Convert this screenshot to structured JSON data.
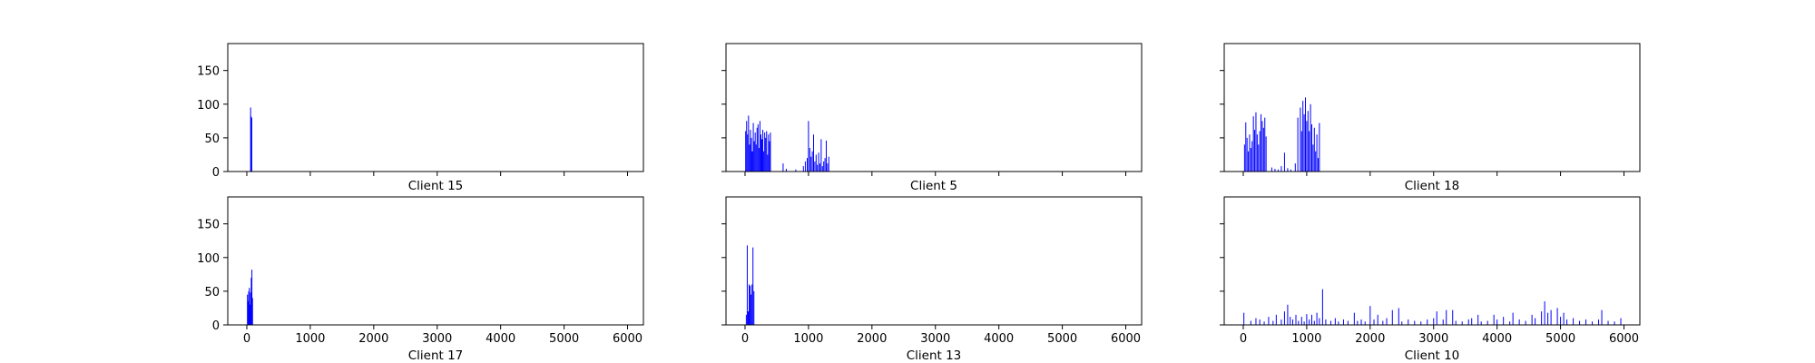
{
  "chart_data": [
    {
      "type": "bar",
      "xlabel": "Client 15",
      "xlim": [
        -300,
        6250
      ],
      "ylim": [
        0,
        190
      ],
      "xticks": [
        0,
        1000,
        2000,
        3000,
        4000,
        5000,
        6000
      ],
      "yticks": [
        0,
        50,
        100,
        150
      ],
      "show_xtick_labels": false,
      "show_ytick_labels": true,
      "bar_color": "#0000ff",
      "bars": [
        {
          "x": 60,
          "y": 95
        },
        {
          "x": 66,
          "y": 82
        },
        {
          "x": 72,
          "y": 78
        },
        {
          "x": 78,
          "y": 80
        }
      ]
    },
    {
      "type": "bar",
      "xlabel": "Client 5",
      "xlim": [
        -300,
        6250
      ],
      "ylim": [
        0,
        190
      ],
      "xticks": [
        0,
        1000,
        2000,
        3000,
        4000,
        5000,
        6000
      ],
      "yticks": [
        0,
        50,
        100,
        150
      ],
      "show_xtick_labels": false,
      "show_ytick_labels": false,
      "bar_color": "#0000ff",
      "bars": [
        {
          "x": 10,
          "y": 60
        },
        {
          "x": 25,
          "y": 75
        },
        {
          "x": 40,
          "y": 55
        },
        {
          "x": 55,
          "y": 83
        },
        {
          "x": 70,
          "y": 40
        },
        {
          "x": 85,
          "y": 62
        },
        {
          "x": 100,
          "y": 50
        },
        {
          "x": 115,
          "y": 30
        },
        {
          "x": 130,
          "y": 72
        },
        {
          "x": 145,
          "y": 45
        },
        {
          "x": 160,
          "y": 58
        },
        {
          "x": 175,
          "y": 40
        },
        {
          "x": 190,
          "y": 65
        },
        {
          "x": 205,
          "y": 70
        },
        {
          "x": 220,
          "y": 35
        },
        {
          "x": 235,
          "y": 75
        },
        {
          "x": 250,
          "y": 55
        },
        {
          "x": 265,
          "y": 48
        },
        {
          "x": 280,
          "y": 62
        },
        {
          "x": 295,
          "y": 30
        },
        {
          "x": 310,
          "y": 58
        },
        {
          "x": 325,
          "y": 50
        },
        {
          "x": 340,
          "y": 60
        },
        {
          "x": 355,
          "y": 25
        },
        {
          "x": 370,
          "y": 55
        },
        {
          "x": 385,
          "y": 45
        },
        {
          "x": 400,
          "y": 58
        },
        {
          "x": 600,
          "y": 12
        },
        {
          "x": 650,
          "y": 4
        },
        {
          "x": 800,
          "y": 3
        },
        {
          "x": 920,
          "y": 8
        },
        {
          "x": 950,
          "y": 15
        },
        {
          "x": 980,
          "y": 20
        },
        {
          "x": 1000,
          "y": 75
        },
        {
          "x": 1020,
          "y": 35
        },
        {
          "x": 1040,
          "y": 22
        },
        {
          "x": 1060,
          "y": 30
        },
        {
          "x": 1080,
          "y": 55
        },
        {
          "x": 1100,
          "y": 15
        },
        {
          "x": 1120,
          "y": 25
        },
        {
          "x": 1140,
          "y": 10
        },
        {
          "x": 1160,
          "y": 28
        },
        {
          "x": 1180,
          "y": 12
        },
        {
          "x": 1200,
          "y": 48
        },
        {
          "x": 1220,
          "y": 8
        },
        {
          "x": 1240,
          "y": 15
        },
        {
          "x": 1260,
          "y": 20
        },
        {
          "x": 1280,
          "y": 46
        },
        {
          "x": 1300,
          "y": 12
        },
        {
          "x": 1320,
          "y": 22
        }
      ]
    },
    {
      "type": "bar",
      "xlabel": "Client 18",
      "xlim": [
        -300,
        6250
      ],
      "ylim": [
        0,
        190
      ],
      "xticks": [
        0,
        1000,
        2000,
        3000,
        4000,
        5000,
        6000
      ],
      "yticks": [
        0,
        50,
        100,
        150
      ],
      "show_xtick_labels": false,
      "show_ytick_labels": false,
      "bar_color": "#0000ff",
      "bars": [
        {
          "x": 20,
          "y": 40
        },
        {
          "x": 40,
          "y": 73
        },
        {
          "x": 60,
          "y": 50
        },
        {
          "x": 80,
          "y": 30
        },
        {
          "x": 100,
          "y": 55
        },
        {
          "x": 120,
          "y": 35
        },
        {
          "x": 140,
          "y": 45
        },
        {
          "x": 160,
          "y": 82
        },
        {
          "x": 180,
          "y": 62
        },
        {
          "x": 200,
          "y": 88
        },
        {
          "x": 220,
          "y": 55
        },
        {
          "x": 240,
          "y": 40
        },
        {
          "x": 260,
          "y": 60
        },
        {
          "x": 280,
          "y": 85
        },
        {
          "x": 300,
          "y": 75
        },
        {
          "x": 320,
          "y": 65
        },
        {
          "x": 340,
          "y": 80
        },
        {
          "x": 360,
          "y": 52
        },
        {
          "x": 450,
          "y": 6
        },
        {
          "x": 500,
          "y": 4
        },
        {
          "x": 550,
          "y": 3
        },
        {
          "x": 600,
          "y": 8
        },
        {
          "x": 650,
          "y": 28
        },
        {
          "x": 700,
          "y": 5
        },
        {
          "x": 750,
          "y": 3
        },
        {
          "x": 820,
          "y": 12
        },
        {
          "x": 860,
          "y": 80
        },
        {
          "x": 900,
          "y": 95
        },
        {
          "x": 920,
          "y": 60
        },
        {
          "x": 940,
          "y": 105
        },
        {
          "x": 960,
          "y": 85
        },
        {
          "x": 980,
          "y": 110
        },
        {
          "x": 1000,
          "y": 75
        },
        {
          "x": 1020,
          "y": 90
        },
        {
          "x": 1040,
          "y": 60
        },
        {
          "x": 1060,
          "y": 100
        },
        {
          "x": 1080,
          "y": 70
        },
        {
          "x": 1100,
          "y": 40
        },
        {
          "x": 1120,
          "y": 65
        },
        {
          "x": 1140,
          "y": 30
        },
        {
          "x": 1160,
          "y": 55
        },
        {
          "x": 1180,
          "y": 20
        },
        {
          "x": 1200,
          "y": 72
        }
      ]
    },
    {
      "type": "bar",
      "xlabel": "Client 17",
      "xlim": [
        -300,
        6250
      ],
      "ylim": [
        0,
        190
      ],
      "xticks": [
        0,
        1000,
        2000,
        3000,
        4000,
        5000,
        6000
      ],
      "yticks": [
        0,
        50,
        100,
        150
      ],
      "show_xtick_labels": true,
      "show_ytick_labels": true,
      "bar_color": "#0000ff",
      "bars": [
        {
          "x": 10,
          "y": 45
        },
        {
          "x": 20,
          "y": 35
        },
        {
          "x": 30,
          "y": 50
        },
        {
          "x": 40,
          "y": 55
        },
        {
          "x": 50,
          "y": 30
        },
        {
          "x": 60,
          "y": 48
        },
        {
          "x": 70,
          "y": 70
        },
        {
          "x": 80,
          "y": 82
        },
        {
          "x": 90,
          "y": 40
        }
      ]
    },
    {
      "type": "bar",
      "xlabel": "Client 13",
      "xlim": [
        -300,
        6250
      ],
      "ylim": [
        0,
        190
      ],
      "xticks": [
        0,
        1000,
        2000,
        3000,
        4000,
        5000,
        6000
      ],
      "yticks": [
        0,
        50,
        100,
        150
      ],
      "show_xtick_labels": true,
      "show_ytick_labels": false,
      "bar_color": "#0000ff",
      "bars": [
        {
          "x": 20,
          "y": 15
        },
        {
          "x": 35,
          "y": 118
        },
        {
          "x": 50,
          "y": 20
        },
        {
          "x": 65,
          "y": 60
        },
        {
          "x": 80,
          "y": 58
        },
        {
          "x": 95,
          "y": 45
        },
        {
          "x": 110,
          "y": 60
        },
        {
          "x": 125,
          "y": 115
        },
        {
          "x": 140,
          "y": 50
        }
      ]
    },
    {
      "type": "bar",
      "xlabel": "Client 10",
      "xlim": [
        -300,
        6250
      ],
      "ylim": [
        0,
        190
      ],
      "xticks": [
        0,
        1000,
        2000,
        3000,
        4000,
        5000,
        6000
      ],
      "yticks": [
        0,
        50,
        100,
        150
      ],
      "show_xtick_labels": true,
      "show_ytick_labels": false,
      "bar_color": "#0000ff",
      "bars": [
        {
          "x": 10,
          "y": 18
        },
        {
          "x": 120,
          "y": 6
        },
        {
          "x": 200,
          "y": 10
        },
        {
          "x": 260,
          "y": 8
        },
        {
          "x": 330,
          "y": 5
        },
        {
          "x": 400,
          "y": 12
        },
        {
          "x": 470,
          "y": 6
        },
        {
          "x": 520,
          "y": 15
        },
        {
          "x": 600,
          "y": 8
        },
        {
          "x": 650,
          "y": 20
        },
        {
          "x": 700,
          "y": 30
        },
        {
          "x": 740,
          "y": 12
        },
        {
          "x": 780,
          "y": 8
        },
        {
          "x": 830,
          "y": 15
        },
        {
          "x": 870,
          "y": 6
        },
        {
          "x": 920,
          "y": 12
        },
        {
          "x": 960,
          "y": 5
        },
        {
          "x": 1000,
          "y": 16
        },
        {
          "x": 1040,
          "y": 8
        },
        {
          "x": 1080,
          "y": 15
        },
        {
          "x": 1120,
          "y": 6
        },
        {
          "x": 1160,
          "y": 18
        },
        {
          "x": 1200,
          "y": 10
        },
        {
          "x": 1250,
          "y": 53
        },
        {
          "x": 1300,
          "y": 8
        },
        {
          "x": 1380,
          "y": 6
        },
        {
          "x": 1450,
          "y": 10
        },
        {
          "x": 1500,
          "y": 5
        },
        {
          "x": 1580,
          "y": 8
        },
        {
          "x": 1650,
          "y": 6
        },
        {
          "x": 1750,
          "y": 18
        },
        {
          "x": 1800,
          "y": 6
        },
        {
          "x": 1860,
          "y": 8
        },
        {
          "x": 1920,
          "y": 5
        },
        {
          "x": 2000,
          "y": 28
        },
        {
          "x": 2060,
          "y": 8
        },
        {
          "x": 2120,
          "y": 15
        },
        {
          "x": 2200,
          "y": 6
        },
        {
          "x": 2260,
          "y": 10
        },
        {
          "x": 2350,
          "y": 22
        },
        {
          "x": 2450,
          "y": 25
        },
        {
          "x": 2500,
          "y": 5
        },
        {
          "x": 2600,
          "y": 8
        },
        {
          "x": 2700,
          "y": 6
        },
        {
          "x": 2800,
          "y": 5
        },
        {
          "x": 2900,
          "y": 8
        },
        {
          "x": 3000,
          "y": 10
        },
        {
          "x": 3050,
          "y": 20
        },
        {
          "x": 3150,
          "y": 8
        },
        {
          "x": 3200,
          "y": 22
        },
        {
          "x": 3300,
          "y": 22
        },
        {
          "x": 3350,
          "y": 6
        },
        {
          "x": 3450,
          "y": 5
        },
        {
          "x": 3550,
          "y": 8
        },
        {
          "x": 3600,
          "y": 10
        },
        {
          "x": 3700,
          "y": 15
        },
        {
          "x": 3750,
          "y": 5
        },
        {
          "x": 3850,
          "y": 6
        },
        {
          "x": 3950,
          "y": 15
        },
        {
          "x": 4000,
          "y": 8
        },
        {
          "x": 4100,
          "y": 12
        },
        {
          "x": 4200,
          "y": 5
        },
        {
          "x": 4250,
          "y": 18
        },
        {
          "x": 4350,
          "y": 8
        },
        {
          "x": 4450,
          "y": 6
        },
        {
          "x": 4550,
          "y": 15
        },
        {
          "x": 4600,
          "y": 10
        },
        {
          "x": 4700,
          "y": 20
        },
        {
          "x": 4750,
          "y": 35
        },
        {
          "x": 4800,
          "y": 18
        },
        {
          "x": 4850,
          "y": 22
        },
        {
          "x": 4950,
          "y": 25
        },
        {
          "x": 5000,
          "y": 12
        },
        {
          "x": 5050,
          "y": 18
        },
        {
          "x": 5100,
          "y": 8
        },
        {
          "x": 5200,
          "y": 10
        },
        {
          "x": 5300,
          "y": 6
        },
        {
          "x": 5400,
          "y": 8
        },
        {
          "x": 5500,
          "y": 5
        },
        {
          "x": 5600,
          "y": 8
        },
        {
          "x": 5650,
          "y": 22
        },
        {
          "x": 5750,
          "y": 6
        },
        {
          "x": 5850,
          "y": 5
        },
        {
          "x": 5950,
          "y": 10
        }
      ]
    }
  ]
}
